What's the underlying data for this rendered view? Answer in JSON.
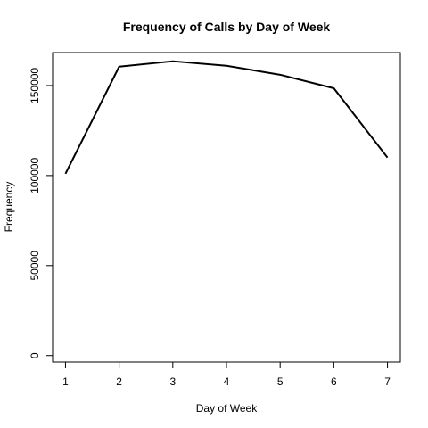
{
  "chart_data": {
    "type": "line",
    "title": "Frequency of Calls by Day of Week",
    "xlabel": "Day of Week",
    "ylabel": "Frequency",
    "x": [
      1,
      2,
      3,
      4,
      5,
      6,
      7
    ],
    "series": [
      {
        "values": [
          101000,
          160500,
          163500,
          161000,
          156000,
          148500,
          110000
        ]
      }
    ],
    "xticks": [
      "1",
      "2",
      "3",
      "4",
      "5",
      "6",
      "7"
    ],
    "yticks": [
      "0",
      "50000",
      "100000",
      "150000"
    ],
    "ylim": [
      -3600,
      168300
    ],
    "xlim": [
      0.76,
      7.24
    ],
    "grid": false,
    "line_color": "#000000"
  }
}
